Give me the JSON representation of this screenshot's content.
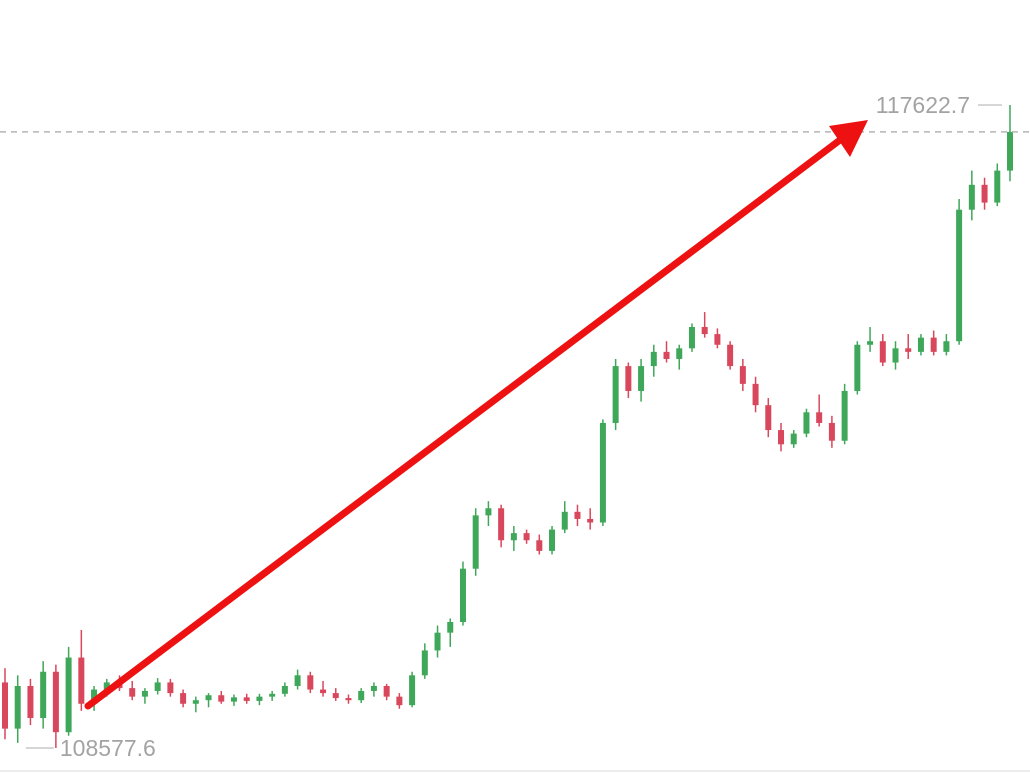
{
  "chart_data": {
    "type": "candlestick",
    "up_color": "#3fa75a",
    "down_color": "#d8475b",
    "open": [
      109500,
      108850,
      109450,
      109000,
      109650,
      108800,
      109850,
      109200,
      109400,
      109500,
      109420,
      109300,
      109380,
      109500,
      109350,
      109200,
      109250,
      109320,
      109230,
      109290,
      109240,
      109300,
      109340,
      109450,
      109600,
      109400,
      109350,
      109280,
      109250,
      109380,
      109450,
      109300,
      109180,
      109600,
      109950,
      110200,
      110350,
      111100,
      111850,
      111950,
      111500,
      111600,
      111500,
      111350,
      111650,
      111900,
      111800,
      111750,
      113150,
      113950,
      113600,
      113950,
      114150,
      114050,
      114200,
      114500,
      114400,
      114250,
      113950,
      113700,
      113400,
      113050,
      112850,
      113000,
      113300,
      113150,
      112900,
      113600,
      114250,
      114300,
      114000,
      114200,
      114150,
      114350,
      114150,
      114300,
      116150,
      116500,
      116250,
      116700
    ],
    "high": [
      109700,
      109600,
      109550,
      109800,
      109750,
      110000,
      110238,
      109450,
      109550,
      109600,
      109520,
      109420,
      109560,
      109550,
      109400,
      109300,
      109350,
      109380,
      109330,
      109340,
      109340,
      109380,
      109500,
      109680,
      109650,
      109520,
      109420,
      109330,
      109420,
      109500,
      109480,
      109350,
      109650,
      110050,
      110300,
      110400,
      111200,
      111950,
      112050,
      112000,
      111700,
      111650,
      111580,
      111700,
      112050,
      112000,
      111950,
      113200,
      114050,
      114000,
      114050,
      114250,
      114300,
      114250,
      114550,
      114710,
      114480,
      114300,
      114050,
      113800,
      113500,
      113150,
      113050,
      113350,
      113550,
      113250,
      113700,
      114300,
      114500,
      114400,
      114300,
      114400,
      114400,
      114450,
      114400,
      116300,
      116700,
      116600,
      116800,
      117622.7
    ],
    "low": [
      108700,
      108650,
      108900,
      108850,
      108577.6,
      108750,
      109100,
      109100,
      109300,
      109380,
      109250,
      109200,
      109330,
      109300,
      109150,
      109080,
      109150,
      109200,
      109170,
      109200,
      109180,
      109240,
      109300,
      109400,
      109350,
      109300,
      109240,
      109200,
      109210,
      109300,
      109250,
      109130,
      109150,
      109550,
      109850,
      110000,
      110300,
      111000,
      111700,
      111400,
      111350,
      111450,
      111300,
      111300,
      111600,
      111700,
      111650,
      111700,
      113050,
      113500,
      113450,
      113800,
      114000,
      113900,
      114150,
      114350,
      114200,
      113900,
      113600,
      113300,
      112950,
      112750,
      112800,
      112950,
      113100,
      112800,
      112850,
      113550,
      114150,
      113950,
      113900,
      114050,
      114100,
      114100,
      114100,
      114250,
      116000,
      116150,
      116200,
      116550
    ],
    "close": [
      108850,
      109450,
      109000,
      109650,
      108800,
      109850,
      109200,
      109400,
      109500,
      109420,
      109300,
      109380,
      109500,
      109350,
      109200,
      109250,
      109320,
      109230,
      109290,
      109240,
      109300,
      109340,
      109450,
      109600,
      109400,
      109350,
      109280,
      109250,
      109380,
      109450,
      109300,
      109180,
      109600,
      109950,
      110200,
      110350,
      111100,
      111850,
      111950,
      111500,
      111600,
      111500,
      111350,
      111650,
      111900,
      111800,
      111750,
      113150,
      113950,
      113600,
      113950,
      114150,
      114050,
      114200,
      114500,
      114400,
      114250,
      113950,
      113700,
      113400,
      113050,
      112850,
      113000,
      113300,
      113150,
      112900,
      113600,
      114250,
      114300,
      114000,
      114200,
      114150,
      114350,
      114150,
      114300,
      116150,
      116500,
      116250,
      116700,
      117244
    ]
  }
}
